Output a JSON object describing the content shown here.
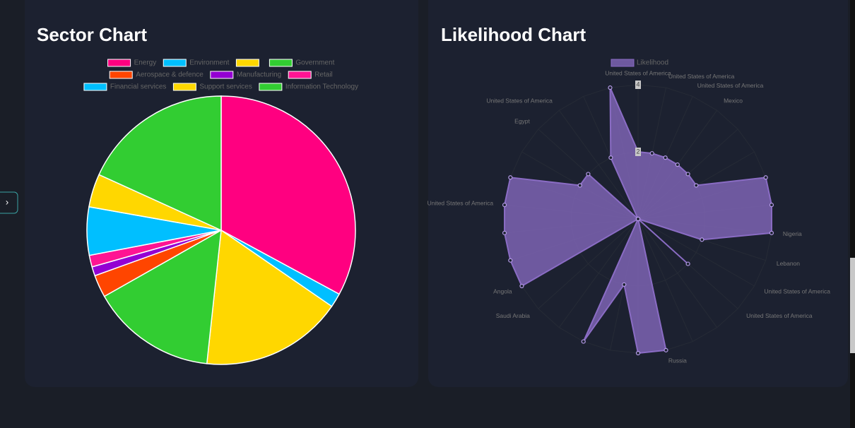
{
  "sidebar_toggle": "›",
  "chart_data": [
    {
      "type": "pie",
      "title": "Sector Chart",
      "categories": [
        "Energy",
        "Environment",
        null,
        "Government",
        "Aerospace & defence",
        "Manufacturing",
        "Retail",
        "Financial services",
        "Support services",
        "Information Technology"
      ],
      "values": [
        32.9,
        1.7,
        17.1,
        15.1,
        2.7,
        1.1,
        1.4,
        5.8,
        4,
        18.2
      ],
      "colors": [
        "#ff0080",
        "#00bfff",
        "#ffd700",
        "#32cd32",
        "#ff4500",
        "#9400d3",
        "#ff1493",
        "#00bfff",
        "#ffd700",
        "#32cd32"
      ]
    },
    {
      "type": "radar",
      "title": "Likelihood Chart",
      "categories": [
        "United States of America",
        "United States of America",
        "United States of America",
        "Mexico",
        null,
        null,
        null,
        null,
        "Nigeria",
        "Lebanon",
        "United States of America",
        "United States of America",
        null,
        null,
        "Russia",
        null,
        null,
        null,
        null,
        "Saudi Arabia",
        "Angola",
        null,
        null,
        "United States of America",
        null,
        null,
        "Egypt",
        "United States of America",
        null,
        null
      ],
      "series": [
        {
          "name": "Likelihood",
          "color": "#8a6cc4",
          "values": [
            2,
            2,
            2,
            2,
            2,
            2,
            4,
            4,
            4,
            2,
            0,
            2,
            0,
            0,
            4,
            4,
            2,
            4,
            0,
            0,
            4,
            4,
            4,
            4,
            4,
            2,
            2,
            0,
            2,
            4
          ]
        }
      ],
      "ylim": [
        0,
        4
      ],
      "yticks": [
        2,
        4
      ]
    }
  ]
}
